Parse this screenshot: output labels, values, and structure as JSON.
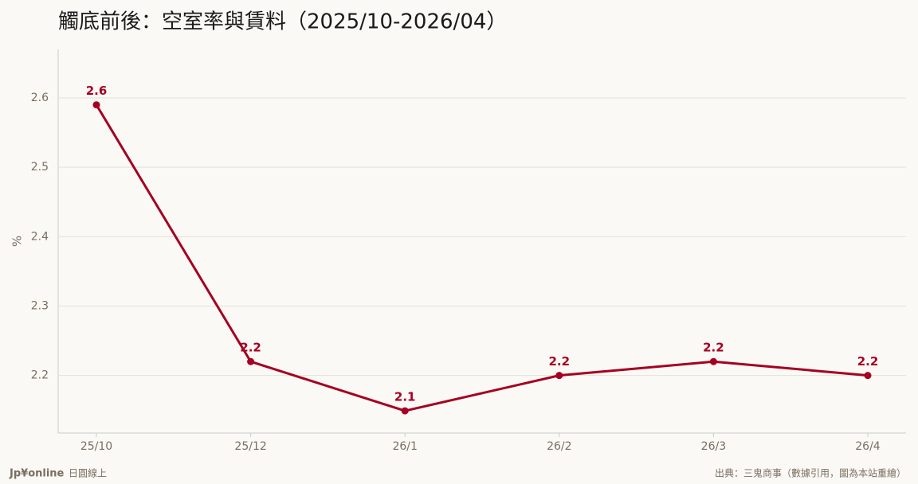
{
  "chart_data": {
    "type": "line",
    "title": "觸底前後：空室率與賃料（2025/10-2026/04）",
    "y_label": "%",
    "categories": [
      "25/10",
      "25/12",
      "26/1",
      "26/2",
      "26/3",
      "26/4"
    ],
    "series": [
      {
        "color": "#a50021",
        "values": [
          2.59,
          2.22,
          2.149,
          2.2,
          2.22,
          2.2
        ],
        "value_labels": [
          "2.6",
          "2.2",
          "2.1",
          "2.2",
          "2.2",
          "2.2"
        ]
      }
    ],
    "ylim": [
      2.117,
      2.67
    ],
    "yticks": [
      2.2,
      2.3,
      2.4,
      2.5,
      2.6
    ],
    "grid": true
  },
  "footer": {
    "brand": "Jp¥online",
    "brand_sub": "日圓線上",
    "source": "出典：三鬼商事（數據引用，圖為本站重繪）"
  }
}
